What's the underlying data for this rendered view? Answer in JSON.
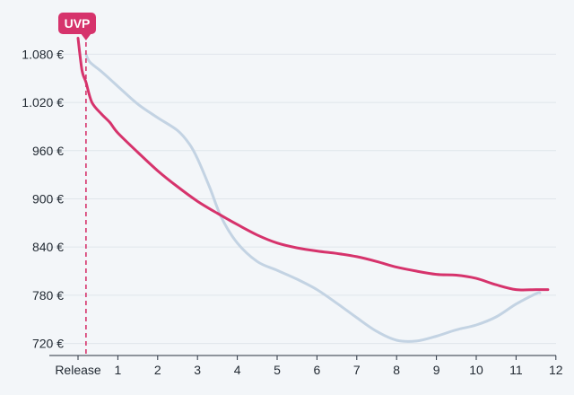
{
  "chart_data": {
    "type": "line",
    "xlabel": "",
    "ylabel": "",
    "xlim": [
      -0.5,
      12
    ],
    "ylim": [
      705,
      1105
    ],
    "x_ticks": [
      0,
      1,
      2,
      3,
      4,
      5,
      6,
      7,
      8,
      9,
      10,
      11,
      12
    ],
    "x_tick_labels": [
      "Release",
      "1",
      "2",
      "3",
      "4",
      "5",
      "6",
      "7",
      "8",
      "9",
      "10",
      "11",
      "12"
    ],
    "y_ticks": [
      720,
      780,
      840,
      900,
      960,
      1020,
      1080
    ],
    "y_tick_labels": [
      "720 €",
      "780 €",
      "840 €",
      "900 €",
      "960 €",
      "1.020 €",
      "1.080 €"
    ],
    "grid": true,
    "colors": {
      "primary": "#d6336c",
      "secondary": "#c3d3e3",
      "axis": "#2a3340",
      "grid": "#dfe5eb"
    },
    "annotation": {
      "label": "UVP",
      "x": 0.2
    },
    "series": [
      {
        "color": "#d6336c",
        "x": [
          0,
          0.1,
          0.2,
          0.35,
          0.6,
          0.8,
          1,
          1.5,
          2,
          2.5,
          3,
          3.5,
          4,
          4.5,
          5,
          5.5,
          6,
          6.5,
          7,
          7.5,
          8,
          8.5,
          9,
          9.5,
          10,
          10.5,
          11,
          11.5,
          11.8
        ],
        "values": [
          1100,
          1060,
          1045,
          1020,
          1005,
          995,
          982,
          958,
          935,
          915,
          897,
          882,
          868,
          855,
          845,
          839,
          835,
          832,
          828,
          822,
          815,
          810,
          806,
          805,
          801,
          793,
          787,
          787,
          787
        ]
      },
      {
        "color": "#c3d3e3",
        "x": [
          0.2,
          0.3,
          0.6,
          1,
          1.5,
          2,
          2.5,
          2.8,
          3,
          3.3,
          3.6,
          4,
          4.5,
          5,
          5.5,
          6,
          6.5,
          7,
          7.5,
          8,
          8.5,
          9,
          9.5,
          10,
          10.5,
          11,
          11.5,
          11.6
        ],
        "values": [
          1080,
          1070,
          1058,
          1040,
          1018,
          1001,
          985,
          968,
          950,
          915,
          877,
          845,
          822,
          811,
          800,
          787,
          770,
          752,
          735,
          724,
          723,
          729,
          737,
          743,
          753,
          769,
          782,
          783
        ]
      }
    ]
  }
}
